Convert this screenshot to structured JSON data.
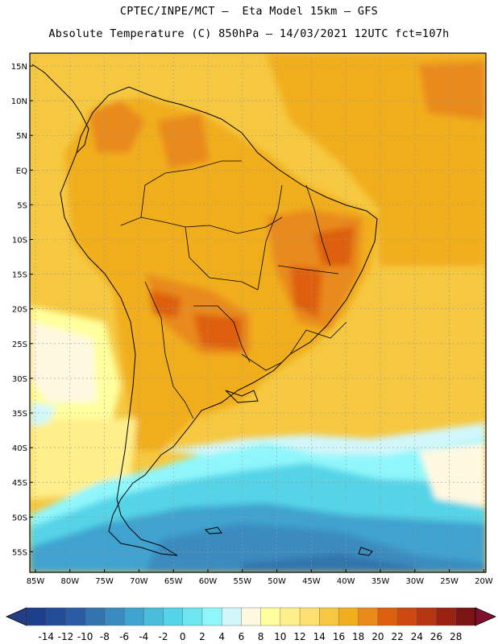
{
  "header": {
    "line1": "CPTEC/INPE/MCT –  Eta Model 15km – GFS",
    "line2": "Absolute Temperature (C) 850hPa – 14/03/2021 12UTC fct=107h"
  },
  "lat_labels": [
    "15N",
    "10N",
    "5N",
    "EQ",
    "5S",
    "10S",
    "15S",
    "20S",
    "25S",
    "30S",
    "35S",
    "40S",
    "45S",
    "50S",
    "55S"
  ],
  "lon_labels": [
    "85W",
    "80W",
    "75W",
    "70W",
    "65W",
    "60W",
    "55W",
    "50W",
    "45W",
    "40W",
    "35W",
    "30W",
    "25W",
    "20W"
  ],
  "colorbar": {
    "labels": [
      "-14",
      "-12",
      "-10",
      "-8",
      "-6",
      "-4",
      "-2",
      "0",
      "2",
      "4",
      "6",
      "8",
      "10",
      "12",
      "14",
      "16",
      "18",
      "20",
      "22",
      "24",
      "26",
      "28"
    ],
    "colors": [
      "#1e3f8c",
      "#234c97",
      "#2a5ba3",
      "#3274ad",
      "#3a8bbf",
      "#3fa3cf",
      "#4abcdc",
      "#54d4e8",
      "#6de6f0",
      "#8ff7fb",
      "#d2f7fb",
      "#fff8e1",
      "#ffff9e",
      "#ffef8a",
      "#fde070",
      "#f6c841",
      "#f1ae1e",
      "#e98a1a",
      "#de5f0f",
      "#cc4a10",
      "#b63412",
      "#9a2213",
      "#7a1513"
    ],
    "under_color": "#243d85",
    "over_color": "#80102f"
  }
}
